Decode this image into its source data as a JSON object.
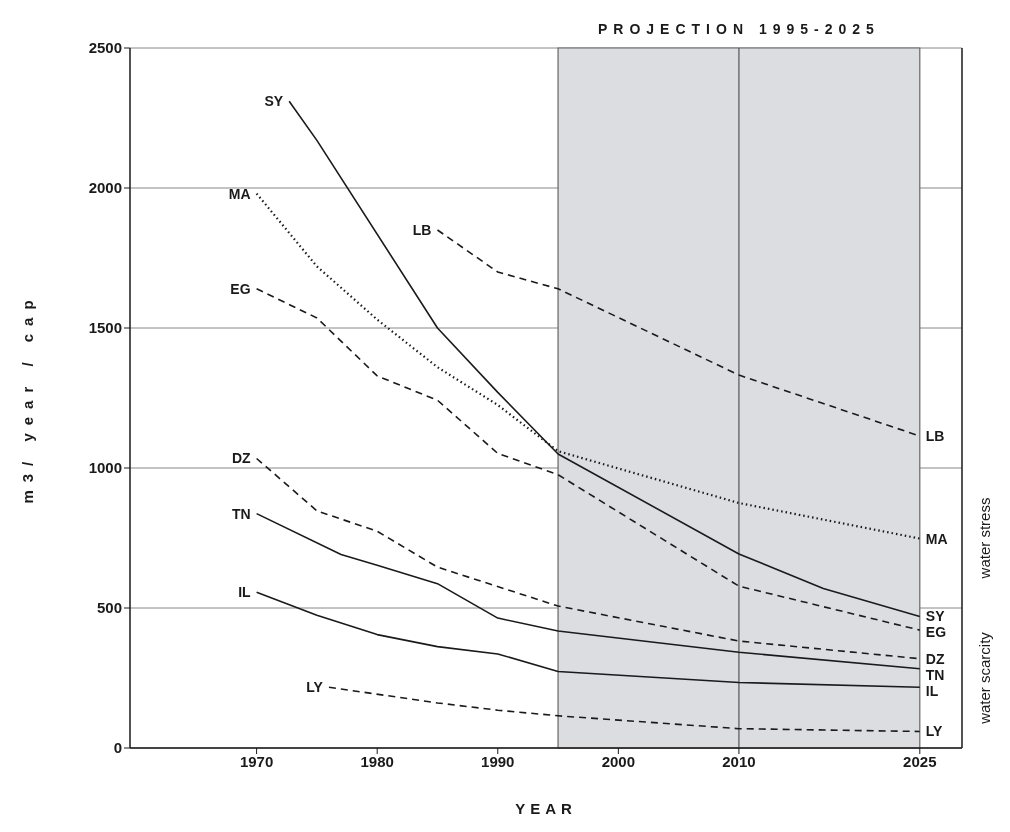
{
  "chart_data": {
    "type": "line",
    "xlabel": "YEAR",
    "ylabel": "m3/ year / cap",
    "xlim": [
      1959.5,
      2028.5
    ],
    "xticks": [
      1970,
      1980,
      1990,
      2000,
      2010,
      2025
    ],
    "ylim": [
      0,
      2500
    ],
    "yticks": [
      0,
      500,
      1000,
      1500,
      2000,
      2500
    ],
    "grid": "y",
    "marker": "none",
    "bands": [
      {
        "axis": "x",
        "from": 1995,
        "to": 2025,
        "label": "PROJECTION 1995-2025",
        "color": "#dcdde0"
      }
    ],
    "ref_lines": [
      {
        "axis": "x",
        "value": 2010,
        "color": "#555555"
      }
    ],
    "annotations": [
      "water stress",
      "water scarcity"
    ],
    "series": [
      {
        "name": "SY",
        "color": "#1a1a1a",
        "line_style": "solid",
        "x": [
          1972.7,
          1975,
          1985,
          1990,
          1995,
          2010,
          2017,
          2025
        ],
        "values": [
          2310,
          2170,
          1500,
          1270,
          1050,
          693,
          570,
          470
        ]
      },
      {
        "name": "MA",
        "color": "#1a1a1a",
        "line_style": "dotted",
        "x": [
          1970,
          1975,
          1980,
          1985,
          1990,
          1995,
          2010,
          2025
        ],
        "values": [
          1980,
          1720,
          1530,
          1360,
          1225,
          1060,
          875,
          748
        ]
      },
      {
        "name": "EG",
        "color": "#1a1a1a",
        "line_style": "dashed",
        "x": [
          1970,
          1975,
          1980,
          1985,
          1990,
          1995,
          2010,
          2025
        ],
        "values": [
          1640,
          1536,
          1329,
          1242,
          1052,
          976,
          578,
          421
        ]
      },
      {
        "name": "LB",
        "color": "#1a1a1a",
        "line_style": "dashed",
        "x": [
          1985,
          1990,
          1995,
          2010,
          2025
        ],
        "values": [
          1850,
          1700,
          1640,
          1332,
          1114
        ]
      },
      {
        "name": "DZ",
        "color": "#1a1a1a",
        "line_style": "dashed",
        "x": [
          1970,
          1975,
          1980,
          1985,
          1995,
          2010,
          2025
        ],
        "values": [
          1034,
          847,
          774,
          646,
          507,
          382,
          319
        ]
      },
      {
        "name": "TN",
        "color": "#1a1a1a",
        "line_style": "solid",
        "x": [
          1970,
          1977,
          1980,
          1985,
          1990,
          1995,
          2010,
          2025
        ],
        "values": [
          837,
          691,
          653,
          587,
          464,
          418,
          342,
          283
        ]
      },
      {
        "name": "IL",
        "color": "#1a1a1a",
        "line_style": "solid",
        "x": [
          1970,
          1975,
          1980,
          1985,
          1990,
          1995,
          2010,
          2025
        ],
        "values": [
          556,
          474,
          405,
          362,
          336,
          273,
          234,
          217
        ]
      },
      {
        "name": "LY",
        "color": "#1a1a1a",
        "line_style": "dashed",
        "x": [
          1976,
          1985,
          1990,
          1995,
          2010,
          2025
        ],
        "values": [
          217,
          161,
          135,
          115,
          69,
          59
        ]
      }
    ]
  }
}
